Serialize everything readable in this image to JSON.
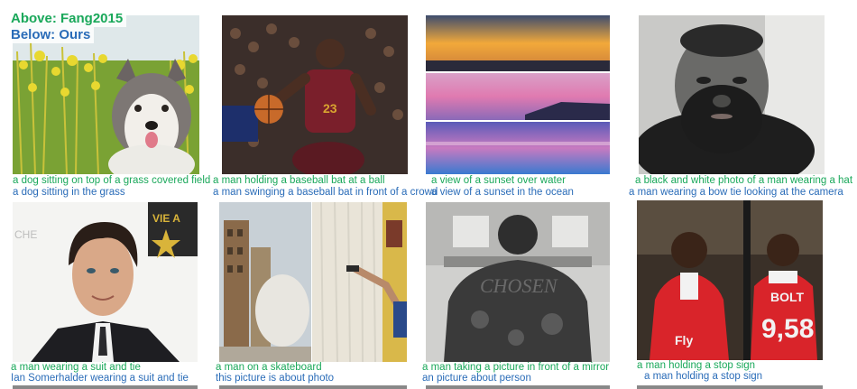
{
  "legend": {
    "above": "Above: Fang2015",
    "below": "Below: Ours"
  },
  "colors": {
    "fang": "#1aa85a",
    "ours": "#2a6cb8"
  },
  "items": [
    {
      "photo": "dog in yellow flower field",
      "fang": "a dog sitting on top of a grass covered field",
      "ours": "a dog sitting in the grass"
    },
    {
      "photo": "basketball player dribbling",
      "fang": "a man holding a baseball bat at a ball",
      "ours": "a man swinging a baseball bat in front of a crowd"
    },
    {
      "photo": "sunset over water",
      "fang": "a view of a sunset over water",
      "ours": "a view of a sunset in the ocean"
    },
    {
      "photo": "bearded man selfie",
      "fang": "a black and white photo of a man wearing a hat",
      "ours": "a man wearing a bow tie looking at the camera"
    },
    {
      "photo": "man in suit smiling",
      "fang": "a man wearing a suit and tie",
      "ours": "Ian Somerhalder wearing a suit and tie"
    },
    {
      "photo": "street and pointing gun",
      "fang": "a man on a skateboard",
      "ours": "this picture is about photo"
    },
    {
      "photo": "tattooed back",
      "fang": "a man taking a picture in front of a mirror",
      "ours": "an picture about person"
    },
    {
      "photo": "soccer player in red jersey",
      "fang": "a man holding a stop sign",
      "ours": "a man holding a stop sign"
    }
  ]
}
